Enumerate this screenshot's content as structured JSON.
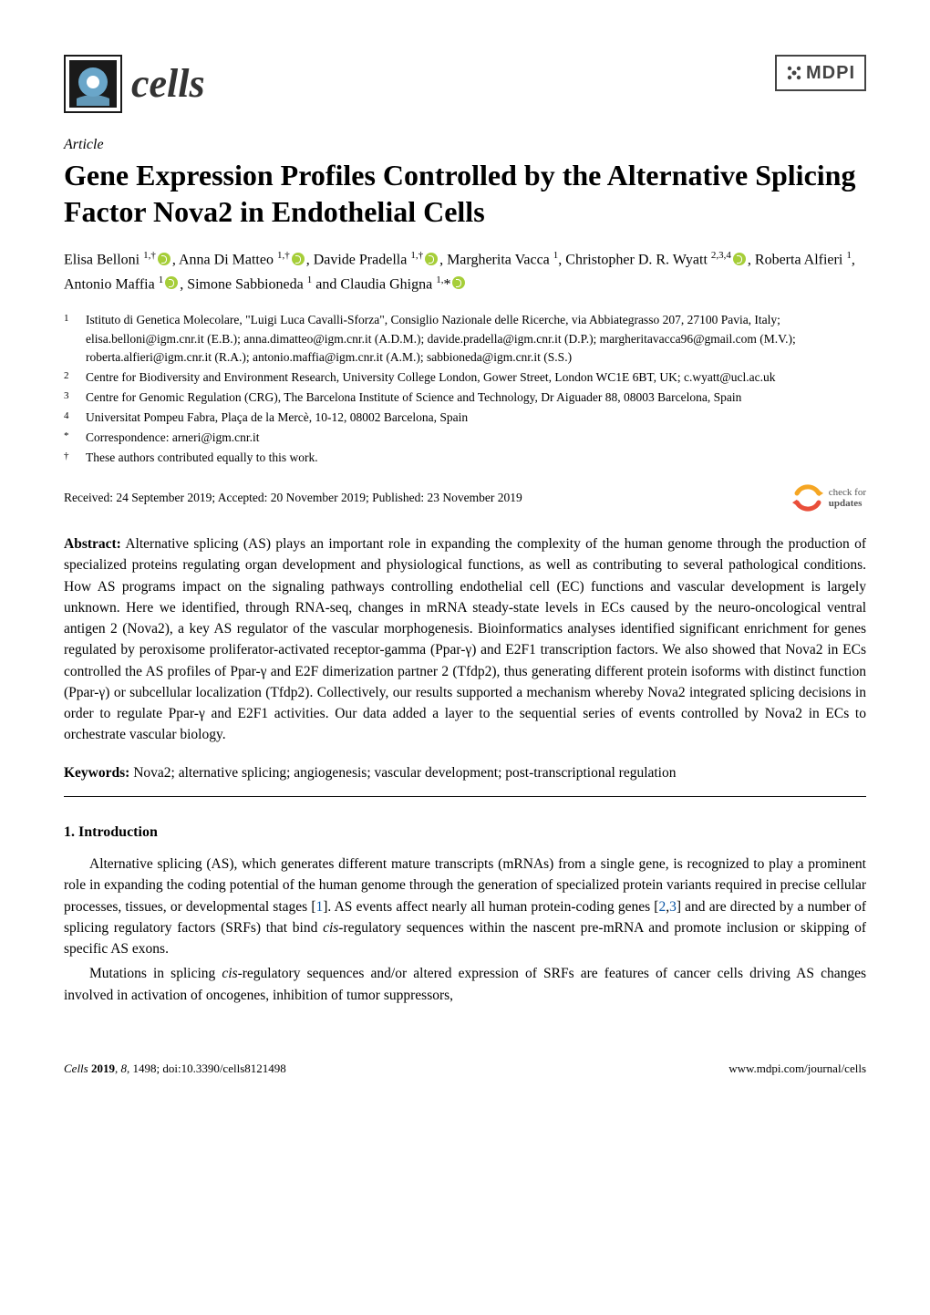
{
  "header": {
    "journal_name": "cells",
    "publisher_logo_text": "MDPI",
    "logo_colors": {
      "dark": "#1a1a1a",
      "accent": "#6aa6c9",
      "white": "#ffffff"
    }
  },
  "article": {
    "type": "Article",
    "title": "Gene Expression Profiles Controlled by the Alternative Splicing Factor Nova2 in Endothelial Cells",
    "authors_html": "Elisa Belloni <sup>1,†</sup><span class='orcid'></span>, Anna Di Matteo <sup>1,†</sup><span class='orcid'></span>, Davide Pradella <sup>1,†</sup><span class='orcid'></span>, Margherita Vacca <sup>1</sup>, Christopher D. R. Wyatt <sup>2,3,4</sup><span class='orcid'></span>, Roberta Alfieri <sup>1</sup>, Antonio Maffia <sup>1</sup><span class='orcid'></span>, Simone Sabbioneda <sup>1</sup> and Claudia Ghigna <sup>1,</sup>*<span class='orcid'></span>",
    "affiliations": [
      {
        "num": "1",
        "text": "Istituto di Genetica Molecolare, \"Luigi Luca Cavalli-Sforza\", Consiglio Nazionale delle Ricerche, via Abbiategrasso 207, 27100 Pavia, Italy; elisa.belloni@igm.cnr.it (E.B.); anna.dimatteo@igm.cnr.it (A.D.M.); davide.pradella@igm.cnr.it (D.P.); margheritavacca96@gmail.com (M.V.); roberta.alfieri@igm.cnr.it (R.A.); antonio.maffia@igm.cnr.it (A.M.); sabbioneda@igm.cnr.it (S.S.)"
      },
      {
        "num": "2",
        "text": "Centre for Biodiversity and Environment Research, University College London, Gower Street, London WC1E 6BT, UK; c.wyatt@ucl.ac.uk"
      },
      {
        "num": "3",
        "text": "Centre for Genomic Regulation (CRG), The Barcelona Institute of Science and Technology, Dr Aiguader 88, 08003 Barcelona, Spain"
      },
      {
        "num": "4",
        "text": "Universitat Pompeu Fabra, Plaça de la Mercè, 10-12, 08002 Barcelona, Spain"
      },
      {
        "num": "*",
        "text": "Correspondence: arneri@igm.cnr.it"
      },
      {
        "num": "†",
        "text": "These authors contributed equally to this work."
      }
    ],
    "received_line": "Received: 24 September 2019; Accepted: 20 November 2019; Published: 23 November 2019",
    "check_updates_label": "check for",
    "check_updates_label2": "updates",
    "abstract_label": "Abstract:",
    "abstract_text": " Alternative splicing (AS) plays an important role in expanding the complexity of the human genome through the production of specialized proteins regulating organ development and physiological functions, as well as contributing to several pathological conditions. How AS programs impact on the signaling pathways controlling endothelial cell (EC) functions and vascular development is largely unknown. Here we identified, through RNA-seq, changes in mRNA steady-state levels in ECs caused by the neuro-oncological ventral antigen 2 (Nova2), a key AS regulator of the vascular morphogenesis. Bioinformatics analyses identified significant enrichment for genes regulated by peroxisome proliferator-activated receptor-gamma (Ppar-γ) and E2F1 transcription factors. We also showed that Nova2 in ECs controlled the AS profiles of Ppar-γ and E2F dimerization partner 2 (Tfdp2), thus generating different protein isoforms with distinct function (Ppar-γ) or subcellular localization (Tfdp2). Collectively, our results supported a mechanism whereby Nova2 integrated splicing decisions in order to regulate Ppar-γ and E2F1 activities. Our data added a layer to the sequential series of events controlled by Nova2 in ECs to orchestrate vascular biology.",
    "keywords_label": "Keywords:",
    "keywords_text": " Nova2; alternative splicing; angiogenesis; vascular development; post-transcriptional regulation"
  },
  "body": {
    "section1_heading": "1. Introduction",
    "para1_html": "Alternative splicing (AS), which generates different mature transcripts (mRNAs) from a single gene, is recognized to play a prominent role in expanding the coding potential of the human genome through the generation of specialized protein variants required in precise cellular processes, tissues, or developmental stages [<span class='ref-link'>1</span>]. AS events affect nearly all human protein-coding genes [<span class='ref-link'>2</span>,<span class='ref-link'>3</span>] and are directed by a number of splicing regulatory factors (SRFs) that bind <i>cis</i>-regulatory sequences within the nascent pre-mRNA and promote inclusion or skipping of specific AS exons.",
    "para2_html": "Mutations in splicing <i>cis</i>-regulatory sequences and/or altered expression of SRFs are features of cancer cells driving AS changes involved in activation of oncogenes, inhibition of tumor suppressors,"
  },
  "footer": {
    "left": "Cells 2019, 8, 1498; doi:10.3390/cells8121498",
    "right": "www.mdpi.com/journal/cells"
  },
  "colors": {
    "text": "#000000",
    "link": "#0b56a5",
    "orcid": "#a6ce39",
    "updates_orange": "#f5a623",
    "updates_red": "#e94e3a"
  }
}
